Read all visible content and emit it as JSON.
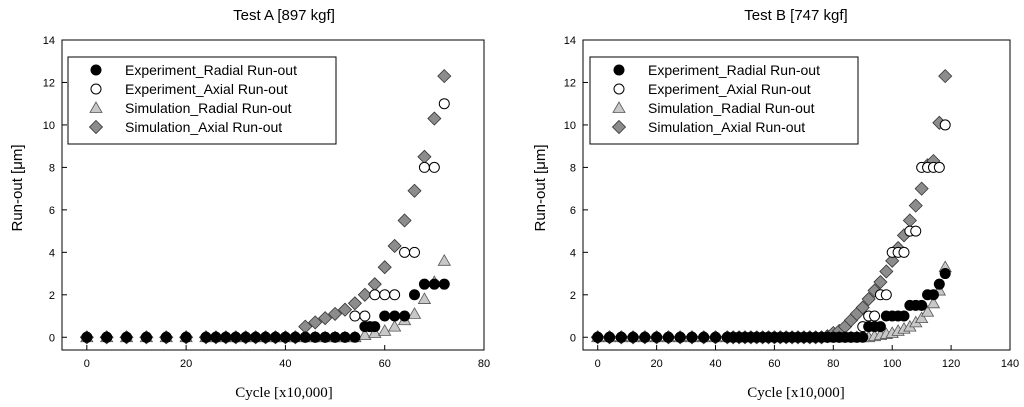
{
  "chart_data": [
    {
      "type": "scatter",
      "title": "Test A [897 kgf]",
      "xlabel": "Cycle [x10,000]",
      "ylabel": "Run-out [μm]",
      "xlim": [
        -5,
        80
      ],
      "ylim": [
        -0.6,
        14
      ],
      "xticks": [
        0,
        20,
        40,
        60,
        80
      ],
      "yticks": [
        0,
        2,
        4,
        6,
        8,
        10,
        12,
        14
      ],
      "legend_position": "top-left",
      "series": [
        {
          "name": "Experiment_Radial Run-out",
          "marker": "circle-filled",
          "x": [
            0,
            4,
            8,
            12,
            16,
            20,
            24,
            26,
            28,
            30,
            32,
            34,
            36,
            38,
            40,
            42,
            44,
            46,
            48,
            50,
            52,
            54,
            56,
            57,
            58,
            60,
            62,
            64,
            66,
            68,
            70,
            72
          ],
          "y": [
            0,
            0,
            0,
            0,
            0,
            0,
            0,
            0,
            0,
            0,
            0,
            0,
            0,
            0,
            0,
            0,
            0,
            0,
            0,
            0,
            0,
            0,
            0.5,
            0.5,
            0.5,
            1,
            1,
            1,
            2,
            2.5,
            2.5,
            2.5
          ]
        },
        {
          "name": "Experiment_Axial Run-out",
          "marker": "circle-open",
          "x": [
            0,
            4,
            8,
            12,
            16,
            20,
            24,
            26,
            28,
            30,
            32,
            34,
            36,
            38,
            40,
            42,
            44,
            46,
            48,
            50,
            52,
            54,
            56,
            58,
            60,
            62,
            64,
            66,
            68,
            70,
            72
          ],
          "y": [
            0,
            0,
            0,
            0,
            0,
            0,
            0,
            0,
            0,
            0,
            0,
            0,
            0,
            0,
            0,
            0,
            0,
            0,
            0,
            0,
            0,
            1,
            1,
            2,
            2,
            2,
            4,
            4,
            8,
            8,
            11
          ]
        },
        {
          "name": "Simulation_Radial Run-out",
          "marker": "triangle",
          "x": [
            0,
            4,
            8,
            12,
            16,
            20,
            24,
            26,
            28,
            30,
            32,
            34,
            36,
            38,
            40,
            42,
            44,
            46,
            48,
            50,
            52,
            54,
            56,
            58,
            60,
            62,
            64,
            66,
            68,
            70,
            72
          ],
          "y": [
            0,
            0,
            0,
            0,
            0,
            0,
            0,
            0,
            0,
            0,
            0,
            0,
            0,
            0,
            0,
            0,
            0,
            0,
            0,
            0,
            0,
            0,
            0.1,
            0.2,
            0.3,
            0.5,
            0.8,
            1.1,
            1.8,
            2.6,
            3.6
          ]
        },
        {
          "name": "Simulation_Axial Run-out",
          "marker": "diamond",
          "x": [
            0,
            4,
            8,
            12,
            16,
            20,
            24,
            26,
            28,
            30,
            32,
            34,
            36,
            38,
            40,
            42,
            44,
            46,
            48,
            50,
            52,
            54,
            56,
            58,
            60,
            62,
            64,
            66,
            68,
            70,
            72
          ],
          "y": [
            0,
            0,
            0,
            0,
            0,
            0,
            0,
            0,
            0,
            0,
            0,
            0,
            0,
            0,
            0,
            0,
            0.5,
            0.7,
            0.9,
            1.1,
            1.3,
            1.6,
            2.0,
            2.5,
            3.3,
            4.3,
            5.5,
            6.9,
            8.5,
            10.3,
            12.3
          ]
        }
      ]
    },
    {
      "type": "scatter",
      "title": "Test B [747 kgf]",
      "xlabel": "Cycle [x10,000]",
      "ylabel": "Run-out [μm]",
      "xlim": [
        -5,
        140
      ],
      "ylim": [
        -0.6,
        14
      ],
      "xticks": [
        0,
        20,
        40,
        60,
        80,
        100,
        120,
        140
      ],
      "yticks": [
        0,
        2,
        4,
        6,
        8,
        10,
        12,
        14
      ],
      "legend_position": "top-left",
      "series": [
        {
          "name": "Experiment_Radial Run-out",
          "marker": "circle-filled",
          "x": [
            0,
            4,
            8,
            12,
            16,
            20,
            24,
            28,
            32,
            36,
            40,
            44,
            46,
            48,
            50,
            52,
            54,
            56,
            58,
            60,
            62,
            64,
            66,
            68,
            70,
            72,
            74,
            76,
            78,
            80,
            82,
            84,
            86,
            88,
            90,
            92,
            94,
            96,
            98,
            100,
            102,
            104,
            106,
            108,
            110,
            112,
            114,
            116,
            118
          ],
          "y": [
            0,
            0,
            0,
            0,
            0,
            0,
            0,
            0,
            0,
            0,
            0,
            0,
            0,
            0,
            0,
            0,
            0,
            0,
            0,
            0,
            0,
            0,
            0,
            0,
            0,
            0,
            0,
            0,
            0,
            0,
            0,
            0,
            0,
            0,
            0,
            0.5,
            0.5,
            0.5,
            1,
            1,
            1,
            1,
            1.5,
            1.5,
            1.5,
            2,
            2,
            2.5,
            3
          ]
        },
        {
          "name": "Experiment_Axial Run-out",
          "marker": "circle-open",
          "x": [
            0,
            4,
            8,
            12,
            16,
            20,
            24,
            28,
            32,
            36,
            40,
            44,
            46,
            48,
            50,
            52,
            54,
            56,
            58,
            60,
            62,
            64,
            66,
            68,
            70,
            72,
            74,
            76,
            78,
            80,
            82,
            84,
            86,
            88,
            90,
            92,
            94,
            96,
            98,
            100,
            102,
            104,
            106,
            108,
            110,
            112,
            114,
            116,
            118
          ],
          "y": [
            0,
            0,
            0,
            0,
            0,
            0,
            0,
            0,
            0,
            0,
            0,
            0,
            0,
            0,
            0,
            0,
            0,
            0,
            0,
            0,
            0,
            0,
            0,
            0,
            0,
            0,
            0,
            0,
            0,
            0,
            0,
            0,
            0,
            0,
            0.5,
            1,
            1,
            2,
            2,
            4,
            4,
            4,
            5,
            5,
            8,
            8,
            8,
            8,
            10
          ]
        },
        {
          "name": "Simulation_Radial Run-out",
          "marker": "triangle",
          "x": [
            0,
            4,
            8,
            12,
            16,
            20,
            24,
            28,
            32,
            36,
            40,
            44,
            46,
            48,
            50,
            52,
            54,
            56,
            58,
            60,
            62,
            64,
            66,
            68,
            70,
            72,
            74,
            76,
            78,
            80,
            82,
            84,
            86,
            88,
            90,
            92,
            94,
            96,
            98,
            100,
            102,
            104,
            106,
            108,
            110,
            112,
            114,
            116,
            118
          ],
          "y": [
            0,
            0,
            0,
            0,
            0,
            0,
            0,
            0,
            0,
            0,
            0,
            0,
            0,
            0,
            0,
            0,
            0,
            0,
            0,
            0,
            0,
            0,
            0,
            0,
            0,
            0,
            0,
            0,
            0,
            0,
            0,
            0,
            0,
            0,
            0,
            0,
            0.05,
            0.1,
            0.15,
            0.2,
            0.3,
            0.4,
            0.5,
            0.7,
            0.9,
            1.2,
            1.6,
            2.2,
            3.3
          ]
        },
        {
          "name": "Simulation_Axial Run-out",
          "marker": "diamond",
          "x": [
            0,
            4,
            8,
            12,
            16,
            20,
            24,
            28,
            32,
            36,
            40,
            44,
            46,
            48,
            50,
            52,
            54,
            56,
            58,
            60,
            62,
            64,
            66,
            68,
            70,
            72,
            74,
            76,
            78,
            80,
            82,
            84,
            86,
            88,
            90,
            92,
            94,
            96,
            98,
            100,
            102,
            104,
            106,
            108,
            110,
            112,
            114,
            116,
            118
          ],
          "y": [
            0,
            0,
            0,
            0,
            0,
            0,
            0,
            0,
            0,
            0,
            0,
            0,
            0,
            0,
            0,
            0,
            0,
            0,
            0,
            0,
            0,
            0,
            0,
            0,
            0,
            0,
            0,
            0,
            0.05,
            0.2,
            0.3,
            0.5,
            0.8,
            1.1,
            1.4,
            1.8,
            2.2,
            2.6,
            3.1,
            3.6,
            4.2,
            4.8,
            5.5,
            6.2,
            7.0,
            8.1,
            8.3,
            10.1,
            12.3
          ]
        }
      ]
    }
  ]
}
